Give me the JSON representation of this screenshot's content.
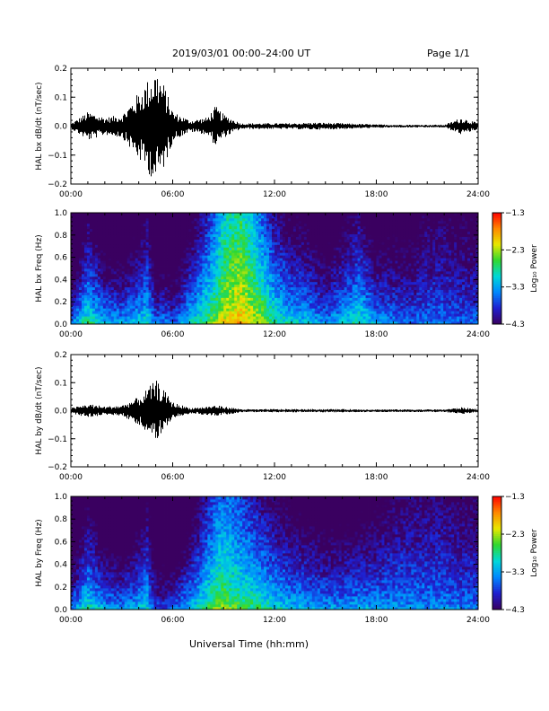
{
  "header": {
    "title": "2019/03/01  00:00–24:00 UT",
    "page": "Page 1/1"
  },
  "xlabel": "Universal Time (hh:mm)",
  "chart_data": [
    {
      "type": "line",
      "title": "",
      "ylabel": "HAL bx dB/dt (nT/sec)",
      "xlim": [
        "00:00",
        "24:00"
      ],
      "ylim": [
        -0.2,
        0.2
      ],
      "x_ticks": [
        "00:00",
        "06:00",
        "12:00",
        "18:00",
        "24:00"
      ],
      "y_ticks": [
        "0.2",
        "0.1",
        "0.0",
        "−0.1",
        "−0.2"
      ],
      "x_hours": [
        0,
        1,
        2,
        3,
        4,
        4.5,
        5,
        5.5,
        6,
        7,
        8,
        8.5,
        9,
        10,
        11,
        12,
        13,
        14,
        15,
        16,
        17,
        18,
        19,
        20,
        21,
        22,
        23,
        24
      ],
      "envelope": [
        0.01,
        0.05,
        0.03,
        0.04,
        0.12,
        0.16,
        0.2,
        0.14,
        0.05,
        0.02,
        0.03,
        0.07,
        0.04,
        0.01,
        0.01,
        0.01,
        0.01,
        0.012,
        0.012,
        0.01,
        0.008,
        0.006,
        0.005,
        0.005,
        0.005,
        0.005,
        0.03,
        0.01
      ],
      "color": "#000000"
    },
    {
      "type": "heatmap",
      "title": "",
      "ylabel": "HAL bx Freq (Hz)",
      "xlim": [
        "00:00",
        "24:00"
      ],
      "ylim": [
        0.0,
        1.0
      ],
      "x_ticks": [
        "00:00",
        "06:00",
        "12:00",
        "18:00",
        "24:00"
      ],
      "y_ticks": [
        "1.0",
        "0.8",
        "0.6",
        "0.4",
        "0.2",
        "0.0"
      ],
      "colorbar": {
        "label": "Log₁₀ Power",
        "ticks": [
          "−1.3",
          "−2.3",
          "−3.3",
          "−4.3"
        ],
        "range": [
          -4.3,
          -1.3
        ]
      },
      "colormap": [
        "#3a0060",
        "#1f1fd0",
        "#0088ff",
        "#00d8d8",
        "#30d830",
        "#e8e800",
        "#ff8800",
        "#ff0000"
      ],
      "x_hours": [
        0,
        1,
        2,
        3,
        4,
        4.5,
        5,
        5.5,
        6,
        7,
        8,
        8.5,
        9,
        10,
        11,
        12,
        13,
        14,
        15,
        16,
        17,
        18,
        19,
        20,
        21,
        22,
        23,
        24
      ],
      "power_low_freq": [
        -3.3,
        -2.6,
        -3.0,
        -3.1,
        -2.9,
        -2.8,
        -3.4,
        -3.3,
        -3.5,
        -2.9,
        -2.5,
        -2.3,
        -2.0,
        -1.8,
        -2.1,
        -2.6,
        -2.9,
        -3.0,
        -3.3,
        -3.0,
        -2.7,
        -3.2,
        -3.3,
        -3.5,
        -3.4,
        -3.4,
        -3.5,
        -3.5
      ],
      "decay_per_hz": [
        2.2,
        1.8,
        2.0,
        2.0,
        1.8,
        1.6,
        1.8,
        1.8,
        1.8,
        1.8,
        1.5,
        1.3,
        1.1,
        1.0,
        1.3,
        1.6,
        1.6,
        1.6,
        1.6,
        1.6,
        1.6,
        1.6,
        1.4,
        1.2,
        1.0,
        1.0,
        1.0,
        1.0
      ]
    },
    {
      "type": "line",
      "title": "",
      "ylabel": "HAL by dB/dt (nT/sec)",
      "xlim": [
        "00:00",
        "24:00"
      ],
      "ylim": [
        -0.2,
        0.2
      ],
      "x_ticks": [
        "00:00",
        "06:00",
        "12:00",
        "18:00",
        "24:00"
      ],
      "y_ticks": [
        "0.2",
        "0.1",
        "0.0",
        "−0.1",
        "−0.2"
      ],
      "x_hours": [
        0,
        1,
        2,
        3,
        4,
        4.5,
        5,
        5.5,
        6,
        7,
        8,
        8.5,
        9,
        10,
        11,
        12,
        13,
        14,
        15,
        16,
        17,
        18,
        19,
        20,
        21,
        22,
        23,
        24
      ],
      "envelope": [
        0.01,
        0.025,
        0.015,
        0.02,
        0.05,
        0.08,
        0.11,
        0.07,
        0.03,
        0.01,
        0.015,
        0.02,
        0.015,
        0.006,
        0.005,
        0.006,
        0.006,
        0.006,
        0.006,
        0.006,
        0.005,
        0.005,
        0.005,
        0.005,
        0.005,
        0.005,
        0.012,
        0.006
      ],
      "color": "#000000"
    },
    {
      "type": "heatmap",
      "title": "",
      "ylabel": "HAL by Freq (Hz)",
      "xlim": [
        "00:00",
        "24:00"
      ],
      "ylim": [
        0.0,
        1.0
      ],
      "x_ticks": [
        "00:00",
        "06:00",
        "12:00",
        "18:00",
        "24:00"
      ],
      "y_ticks": [
        "1.0",
        "0.8",
        "0.6",
        "0.4",
        "0.2",
        "0.0"
      ],
      "colorbar": {
        "label": "Log₁₀ Power",
        "ticks": [
          "−1.3",
          "−2.3",
          "−3.3",
          "−4.3"
        ],
        "range": [
          -4.3,
          -1.3
        ]
      },
      "colormap": [
        "#3a0060",
        "#1f1fd0",
        "#0088ff",
        "#00d8d8",
        "#30d830",
        "#e8e800",
        "#ff8800",
        "#ff0000"
      ],
      "x_hours": [
        0,
        1,
        2,
        3,
        4,
        4.5,
        5,
        5.5,
        6,
        7,
        8,
        8.5,
        9,
        10,
        11,
        12,
        13,
        14,
        15,
        16,
        17,
        18,
        19,
        20,
        21,
        22,
        23,
        24
      ],
      "power_low_freq": [
        -3.3,
        -2.7,
        -3.1,
        -3.2,
        -3.0,
        -2.9,
        -3.6,
        -3.6,
        -3.5,
        -3.0,
        -2.6,
        -2.4,
        -2.3,
        -2.5,
        -2.6,
        -2.8,
        -3.0,
        -3.1,
        -3.2,
        -3.2,
        -3.1,
        -3.2,
        -3.2,
        -3.3,
        -3.3,
        -3.3,
        -3.4,
        -3.4
      ],
      "decay_per_hz": [
        2.2,
        1.8,
        2.0,
        2.0,
        1.8,
        1.6,
        1.6,
        1.6,
        1.8,
        1.8,
        1.5,
        1.3,
        1.2,
        1.3,
        1.5,
        1.6,
        1.6,
        1.6,
        1.6,
        1.6,
        1.6,
        1.4,
        1.2,
        1.0,
        1.0,
        1.0,
        1.0,
        1.0
      ]
    }
  ]
}
